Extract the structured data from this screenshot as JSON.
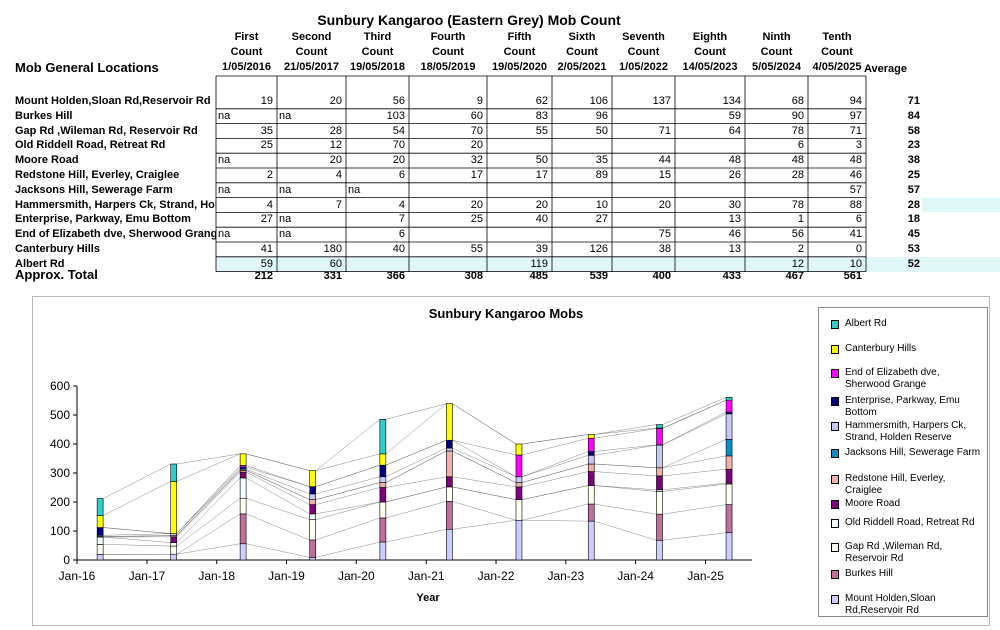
{
  "table": {
    "title": "Sunbury Kangaroo (Eastern Grey) Mob Count",
    "locations_header": "Mob General Locations",
    "average_header": "Average",
    "total_label": "Approx. Total",
    "columns": [
      {
        "line1": "First",
        "line2": "Count",
        "date": "1/05/2016"
      },
      {
        "line1": "Second",
        "line2": "Count",
        "date": "21/05/2017"
      },
      {
        "line1": "Third",
        "line2": "Count",
        "date": "19/05/2018"
      },
      {
        "line1": "Fourth",
        "line2": "Count",
        "date": "18/05/2019"
      },
      {
        "line1": "Fifth",
        "line2": "Count",
        "date": "19/05/2020"
      },
      {
        "line1": "Sixth",
        "line2": "Count",
        "date": "2/05/2021"
      },
      {
        "line1": "Seventh",
        "line2": "Count",
        "date": "1/05/2022"
      },
      {
        "line1": "Eighth",
        "line2": "Count",
        "date": "14/05/2023"
      },
      {
        "line1": "Ninth",
        "line2": "Count",
        "date": "5/05/2024"
      },
      {
        "line1": "Tenth",
        "line2": "Count",
        "date": "4/05/2025"
      }
    ],
    "rows": [
      {
        "name": "Mount Holden,Sloan Rd,Reservoir Rd",
        "values": [
          "19",
          "20",
          "56",
          "9",
          "62",
          "106",
          "137",
          "134",
          "68",
          "94"
        ],
        "average": "71"
      },
      {
        "name": "Burkes Hill",
        "values": [
          "na",
          "na",
          "103",
          "60",
          "83",
          "96",
          "",
          "59",
          "90",
          "97"
        ],
        "average": "84"
      },
      {
        "name": "Gap Rd ,Wileman Rd, Reservoir Rd",
        "values": [
          "35",
          "28",
          "54",
          "70",
          "55",
          "50",
          "71",
          "64",
          "78",
          "71"
        ],
        "average": "58"
      },
      {
        "name": "Old Riddell Road, Retreat Rd",
        "values": [
          "25",
          "12",
          "70",
          "20",
          "",
          "",
          "",
          "",
          "6",
          "3"
        ],
        "average": "23"
      },
      {
        "name": "Moore Road",
        "values": [
          "na",
          "20",
          "20",
          "32",
          "50",
          "35",
          "44",
          "48",
          "48",
          "48"
        ],
        "average": "38"
      },
      {
        "name": "Redstone Hill, Everley, Craiglee",
        "values": [
          "2",
          "4",
          "6",
          "17",
          "17",
          "89",
          "15",
          "26",
          "28",
          "46"
        ],
        "average": "25"
      },
      {
        "name": "Jacksons Hill, Sewerage Farm",
        "values": [
          "na",
          "na",
          "na",
          "",
          "",
          "",
          "",
          "",
          "",
          "57"
        ],
        "average": "57"
      },
      {
        "name": "Hammersmith, Harpers Ck, Strand, Holden Reserve",
        "values": [
          "4",
          "7",
          "4",
          "20",
          "20",
          "10",
          "20",
          "30",
          "78",
          "88"
        ],
        "average": "28"
      },
      {
        "name": "Enterprise, Parkway, Emu Bottom",
        "values": [
          "27",
          "na",
          "7",
          "25",
          "40",
          "27",
          "",
          "13",
          "1",
          "6"
        ],
        "average": "18"
      },
      {
        "name": "End of Elizabeth dve, Sherwood Grange",
        "values": [
          "na",
          "na",
          "6",
          "",
          "",
          "",
          "75",
          "46",
          "56",
          "41"
        ],
        "average": "45"
      },
      {
        "name": "Canterbury Hills",
        "values": [
          "41",
          "180",
          "40",
          "55",
          "39",
          "126",
          "38",
          "13",
          "2",
          "0"
        ],
        "average": "53"
      },
      {
        "name": "Albert Rd",
        "values": [
          "59",
          "60",
          "",
          "",
          "119",
          "",
          "",
          "",
          "12",
          "10"
        ],
        "average": "52"
      }
    ],
    "totals": [
      "212",
      "331",
      "366",
      "308",
      "485",
      "539",
      "400",
      "433",
      "467",
      "561"
    ]
  },
  "chart_data": {
    "type": "bar",
    "stacked": true,
    "title": "Sunbury Kangaroo Mobs",
    "xlabel": "Year",
    "ylabel": "",
    "ylim": [
      0,
      600
    ],
    "yticks": [
      0,
      100,
      200,
      300,
      400,
      500,
      600
    ],
    "xticks": [
      "Jan-16",
      "Jan-17",
      "Jan-18",
      "Jan-19",
      "Jan-20",
      "Jan-21",
      "Jan-22",
      "Jan-23",
      "Jan-24",
      "Jan-25"
    ],
    "x_dates": [
      "2016-05-01",
      "2017-05-21",
      "2018-05-19",
      "2019-05-18",
      "2020-05-19",
      "2021-05-02",
      "2022-05-01",
      "2023-05-14",
      "2024-05-05",
      "2025-05-04"
    ],
    "grid": false,
    "legend_position": "right",
    "series": [
      {
        "name": "Mount Holden,Sloan Rd,Reservoir Rd",
        "color": "#ccccff",
        "values": [
          19,
          20,
          56,
          9,
          62,
          106,
          137,
          134,
          68,
          94
        ]
      },
      {
        "name": "Burkes Hill",
        "color": "#c0709a",
        "values": [
          0,
          0,
          103,
          60,
          83,
          96,
          0,
          59,
          90,
          97
        ]
      },
      {
        "name": "Gap Rd ,Wileman Rd, Reservoir Rd",
        "color": "#fffff0",
        "values": [
          35,
          28,
          54,
          70,
          55,
          50,
          71,
          64,
          78,
          71
        ]
      },
      {
        "name": "Old Riddell Road, Retreat Rd",
        "color": "#f0ffff",
        "values": [
          25,
          12,
          70,
          20,
          0,
          0,
          0,
          0,
          6,
          3
        ]
      },
      {
        "name": "Moore Road",
        "color": "#800080",
        "values": [
          0,
          20,
          20,
          32,
          50,
          35,
          44,
          48,
          48,
          48
        ]
      },
      {
        "name": "Redstone Hill, Everley, Craiglee",
        "color": "#f4b0a8",
        "values": [
          2,
          4,
          6,
          17,
          17,
          89,
          15,
          26,
          28,
          46
        ]
      },
      {
        "name": "Jacksons Hill, Sewerage Farm",
        "color": "#0a8cc8",
        "values": [
          0,
          0,
          0,
          0,
          0,
          0,
          0,
          0,
          0,
          57
        ]
      },
      {
        "name": "Hammersmith, Harpers Ck, Strand, Holden Reserve",
        "color": "#c8c8f8",
        "values": [
          4,
          7,
          4,
          20,
          20,
          10,
          20,
          30,
          78,
          88
        ]
      },
      {
        "name": "Enterprise, Parkway, Emu Bottom",
        "color": "#000080",
        "values": [
          27,
          0,
          7,
          25,
          40,
          27,
          0,
          13,
          1,
          6
        ]
      },
      {
        "name": "End of Elizabeth dve, Sherwood Grange",
        "color": "#ff00ff",
        "values": [
          0,
          0,
          6,
          0,
          0,
          0,
          75,
          46,
          56,
          41
        ]
      },
      {
        "name": "Canterbury Hills",
        "color": "#ffff00",
        "values": [
          41,
          180,
          40,
          55,
          39,
          126,
          38,
          13,
          2,
          0
        ]
      },
      {
        "name": "Albert Rd",
        "color": "#33cccc",
        "values": [
          59,
          60,
          0,
          0,
          119,
          0,
          0,
          0,
          12,
          10
        ]
      }
    ],
    "legend": [
      {
        "label": "Albert Rd",
        "color": "#33cccc"
      },
      {
        "label": "Canterbury Hills",
        "color": "#ffff00"
      },
      {
        "label": "End of Elizabeth dve, Sherwood Grange",
        "color": "#ff00ff"
      },
      {
        "label": "Enterprise, Parkway, Emu Bottom",
        "color": "#000080"
      },
      {
        "label": "Hammersmith, Harpers Ck, Strand, Holden Reserve",
        "color": "#c8c8f8"
      },
      {
        "label": "Jacksons Hill, Sewerage Farm",
        "color": "#0a8cc8"
      },
      {
        "label": "Redstone Hill, Everley, Craiglee",
        "color": "#f4b0a8"
      },
      {
        "label": "Moore Road",
        "color": "#800080"
      },
      {
        "label": "Old Riddell Road, Retreat Rd",
        "color": "#f0ffff"
      },
      {
        "label": "Gap Rd ,Wileman Rd, Reservoir Rd",
        "color": "#fffff0"
      },
      {
        "label": "Burkes Hill",
        "color": "#c0709a"
      },
      {
        "label": "Mount Holden,Sloan Rd,Reservoir Rd",
        "color": "#ccccff"
      }
    ]
  }
}
